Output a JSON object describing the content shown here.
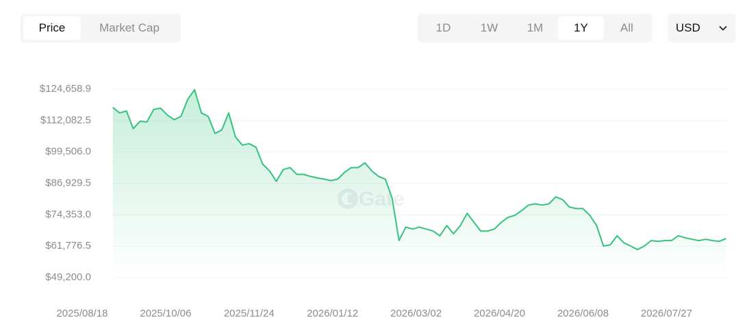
{
  "tabs": [
    {
      "label": "Price",
      "active": true
    },
    {
      "label": "Market Cap",
      "active": false
    }
  ],
  "ranges": [
    {
      "label": "1D",
      "active": false
    },
    {
      "label": "1W",
      "active": false
    },
    {
      "label": "1M",
      "active": false
    },
    {
      "label": "1Y",
      "active": true
    },
    {
      "label": "All",
      "active": false
    }
  ],
  "currency": "USD",
  "chart_data": {
    "type": "area",
    "watermark": "Gate",
    "color": "#35c27f",
    "grid": true,
    "x": [
      "2025/09/05",
      "2025/09/09",
      "2025/09/13",
      "2025/09/17",
      "2025/09/21",
      "2025/09/25",
      "2025/09/29",
      "2025/10/03",
      "2025/10/07",
      "2025/10/11",
      "2025/10/15",
      "2025/10/19",
      "2025/10/23",
      "2025/10/27",
      "2025/10/31",
      "2025/11/04",
      "2025/11/08",
      "2025/11/12",
      "2025/11/16",
      "2025/11/20",
      "2025/11/24",
      "2025/11/28",
      "2025/12/02",
      "2025/12/06",
      "2025/12/10",
      "2025/12/14",
      "2025/12/18",
      "2025/12/22",
      "2025/12/26",
      "2025/12/30",
      "2026/01/03",
      "2026/01/07",
      "2026/01/11",
      "2026/01/15",
      "2026/01/19",
      "2026/01/23",
      "2026/01/27",
      "2026/01/31",
      "2026/02/04",
      "2026/02/08",
      "2026/02/12",
      "2026/02/16",
      "2026/02/20",
      "2026/02/24",
      "2026/02/28",
      "2026/03/04",
      "2026/03/08",
      "2026/03/12",
      "2026/03/16",
      "2026/03/20",
      "2026/03/24",
      "2026/03/28",
      "2026/04/01",
      "2026/04/05",
      "2026/04/09",
      "2026/04/13",
      "2026/04/17",
      "2026/04/21",
      "2026/04/25",
      "2026/04/29",
      "2026/05/03",
      "2026/05/07",
      "2026/05/11",
      "2026/05/15",
      "2026/05/19",
      "2026/05/23",
      "2026/05/27",
      "2026/05/31",
      "2026/06/04",
      "2026/06/08",
      "2026/06/12",
      "2026/06/16",
      "2026/06/20",
      "2026/06/24",
      "2026/06/28",
      "2026/07/02",
      "2026/07/06",
      "2026/07/10",
      "2026/07/14",
      "2026/07/18",
      "2026/07/22",
      "2026/07/26",
      "2026/07/30",
      "2026/08/03",
      "2026/08/07",
      "2026/08/11",
      "2026/08/15",
      "2026/08/19",
      "2026/08/23",
      "2026/08/27",
      "2026/08/31"
    ],
    "values": [
      117300,
      115100,
      115900,
      108800,
      111800,
      111500,
      116500,
      117000,
      114300,
      112400,
      113700,
      120600,
      124400,
      115100,
      113700,
      106900,
      108300,
      115100,
      105500,
      102200,
      102800,
      101400,
      94600,
      91900,
      87700,
      92400,
      93200,
      90500,
      90500,
      89700,
      89100,
      88600,
      88000,
      88600,
      91300,
      93200,
      93200,
      95100,
      91900,
      89700,
      88600,
      80900,
      64000,
      69400,
      68600,
      69400,
      68600,
      67800,
      65900,
      70000,
      66700,
      70000,
      74900,
      71300,
      67800,
      67800,
      68600,
      71300,
      73300,
      74100,
      76000,
      78200,
      78700,
      78200,
      78700,
      81500,
      80400,
      77400,
      76800,
      76800,
      74100,
      70000,
      61800,
      62300,
      65900,
      63100,
      61800,
      60400,
      61800,
      64000,
      63700,
      64000,
      64000,
      65900,
      65100,
      64500,
      64000,
      64500,
      64000,
      63700,
      64800
    ],
    "xlim": [
      "2025/08/18",
      "2026/09/01"
    ],
    "xticks": [
      "2025/08/18",
      "2025/10/06",
      "2025/11/24",
      "2026/01/12",
      "2026/03/02",
      "2026/04/20",
      "2026/06/08",
      "2026/07/27"
    ],
    "ylim": [
      49200,
      124658.9
    ],
    "yticks": [
      {
        "value": 124658.9,
        "label": "$124,658.9"
      },
      {
        "value": 112082.5,
        "label": "$112,082.5"
      },
      {
        "value": 99506.0,
        "label": "$99,506.0"
      },
      {
        "value": 86929.5,
        "label": "$86,929.5"
      },
      {
        "value": 74353.0,
        "label": "$74,353.0"
      },
      {
        "value": 61776.5,
        "label": "$61,776.5"
      },
      {
        "value": 49200.0,
        "label": "$49,200.0"
      }
    ]
  }
}
